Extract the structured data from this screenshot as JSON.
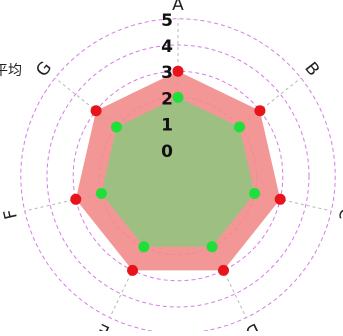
{
  "chart_data": {
    "type": "radar",
    "title": "",
    "axes": [
      "A",
      "B",
      "C",
      "D",
      "E",
      "F",
      "G"
    ],
    "radial_ticks": [
      "0",
      "1",
      "2",
      "3",
      "4",
      "5"
    ],
    "rlim": [
      -1,
      5
    ],
    "series": [
      {
        "name": "平均",
        "values": [
          3,
          3,
          3,
          3,
          3,
          3,
          3
        ],
        "fill": "#f28b8b",
        "marker": "#e8141b"
      },
      {
        "name": "",
        "values": [
          2,
          2,
          2,
          2,
          2,
          2,
          2
        ],
        "fill": "#94c47f",
        "marker": "#1fe03a"
      }
    ],
    "grid": true,
    "grid_color": "#d67ce6",
    "spoke_color": "#b8b8b8",
    "legend_position": "top-left"
  }
}
